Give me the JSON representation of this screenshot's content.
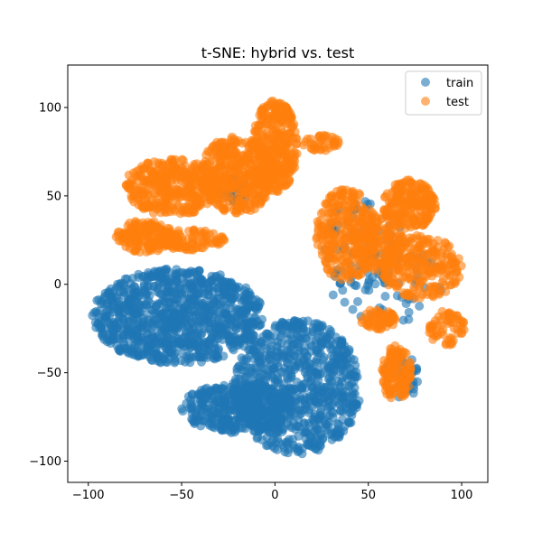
{
  "chart_data": {
    "type": "scatter",
    "title": "t-SNE: hybrid vs. test",
    "xlabel": "",
    "ylabel": "",
    "xlim": [
      -111,
      114
    ],
    "ylim": [
      -112,
      124
    ],
    "x_ticks": [
      -100,
      -50,
      0,
      50,
      100
    ],
    "y_ticks": [
      -100,
      -50,
      0,
      50,
      100
    ],
    "grid": false,
    "legend_position": "top-right",
    "series": [
      {
        "name": "train",
        "color": "#1f77b4",
        "alpha": 0.6,
        "clusters": [
          {
            "type": "ellipse",
            "cx": -52,
            "cy": -18,
            "rx": 46,
            "ry": 27,
            "n": 1000
          },
          {
            "type": "ellipse",
            "cx": 12,
            "cy": -58,
            "rx": 34,
            "ry": 38,
            "n": 800
          },
          {
            "type": "ellipse",
            "cx": -20,
            "cy": -70,
            "rx": 30,
            "ry": 14,
            "n": 400
          },
          {
            "type": "ellipse",
            "cx": -22,
            "cy": 53,
            "rx": 8,
            "ry": 7,
            "n": 40
          },
          {
            "type": "ellipse",
            "cx": 48,
            "cy": 22,
            "rx": 22,
            "ry": 28,
            "n": 80
          },
          {
            "type": "ellipse",
            "cx": 68,
            "cy": -52,
            "rx": 9,
            "ry": 14,
            "n": 40
          },
          {
            "type": "ellipse",
            "cx": 60,
            "cy": 0,
            "rx": 30,
            "ry": 22,
            "n": 60
          }
        ]
      },
      {
        "name": "test",
        "color": "#ff7f0e",
        "alpha": 0.6,
        "clusters": [
          {
            "type": "ellipse",
            "cx": -20,
            "cy": 62,
            "rx": 20,
            "ry": 22,
            "n": 420
          },
          {
            "type": "ellipse",
            "cx": 0,
            "cy": 78,
            "rx": 12,
            "ry": 26,
            "n": 300
          },
          {
            "type": "ellipse",
            "cx": -55,
            "cy": 55,
            "rx": 26,
            "ry": 16,
            "n": 350
          },
          {
            "type": "ellipse",
            "cx": -70,
            "cy": 27,
            "rx": 16,
            "ry": 9,
            "n": 160
          },
          {
            "type": "ellipse",
            "cx": -45,
            "cy": 25,
            "rx": 18,
            "ry": 6,
            "n": 100
          },
          {
            "type": "ellipse",
            "cx": 25,
            "cy": 80,
            "rx": 10,
            "ry": 5,
            "n": 40
          },
          {
            "type": "ellipse",
            "cx": 38,
            "cy": 28,
            "rx": 16,
            "ry": 26,
            "n": 260
          },
          {
            "type": "ellipse",
            "cx": 72,
            "cy": 45,
            "rx": 14,
            "ry": 14,
            "n": 200
          },
          {
            "type": "ellipse",
            "cx": 78,
            "cy": 10,
            "rx": 22,
            "ry": 18,
            "n": 240
          },
          {
            "type": "ellipse",
            "cx": 55,
            "cy": 25,
            "rx": 14,
            "ry": 18,
            "n": 150
          },
          {
            "type": "ellipse",
            "cx": 65,
            "cy": -50,
            "rx": 8,
            "ry": 16,
            "n": 130
          },
          {
            "type": "ellipse",
            "cx": 55,
            "cy": -20,
            "rx": 10,
            "ry": 6,
            "n": 60
          },
          {
            "type": "ellipse",
            "cx": 92,
            "cy": -25,
            "rx": 10,
            "ry": 10,
            "n": 60
          }
        ]
      }
    ]
  }
}
